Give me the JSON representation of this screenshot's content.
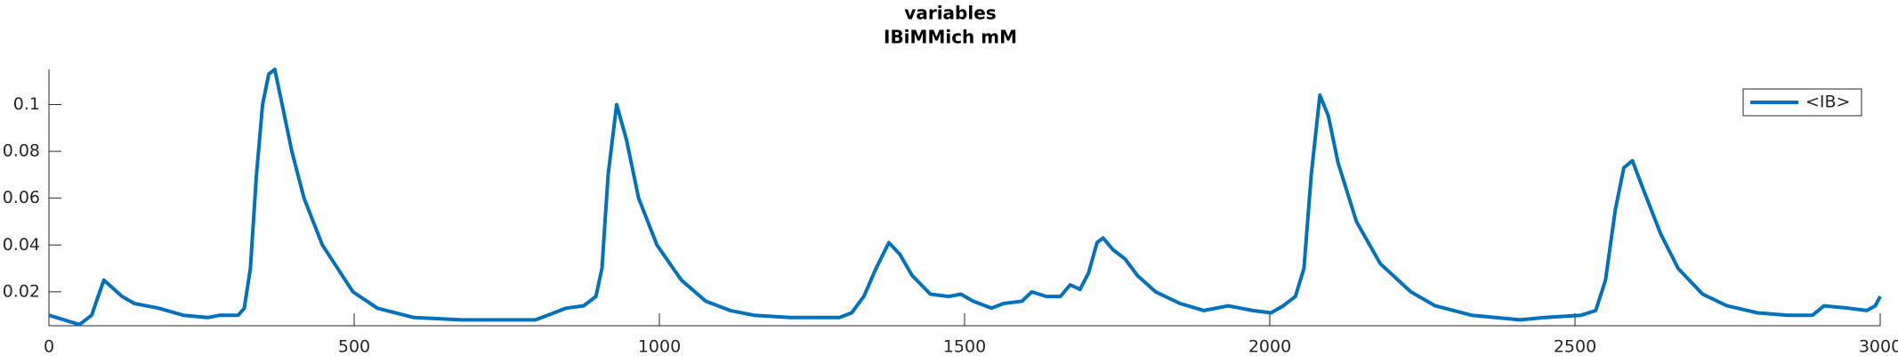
{
  "chart_data": {
    "type": "line",
    "title": "variables",
    "subtitle": "IBiMMich mM",
    "x": [
      0,
      50,
      70,
      90,
      120,
      140,
      180,
      220,
      260,
      280,
      310,
      320,
      330,
      340,
      350,
      360,
      370,
      382,
      398,
      418,
      448,
      498,
      538,
      598,
      677,
      717,
      797,
      817,
      847,
      876,
      896,
      906,
      916,
      930,
      946,
      966,
      996,
      1036,
      1076,
      1116,
      1155,
      1215,
      1295,
      1315,
      1335,
      1355,
      1376,
      1394,
      1414,
      1444,
      1474,
      1494,
      1514,
      1544,
      1564,
      1594,
      1610,
      1634,
      1657,
      1673,
      1689,
      1703,
      1717,
      1727,
      1743,
      1763,
      1783,
      1813,
      1853,
      1892,
      1932,
      1972,
      2002,
      2022,
      2042,
      2056,
      2068,
      2082,
      2096,
      2112,
      2142,
      2181,
      2231,
      2271,
      2331,
      2410,
      2450,
      2510,
      2534,
      2550,
      2566,
      2580,
      2594,
      2610,
      2640,
      2669,
      2709,
      2749,
      2799,
      2849,
      2889,
      2908,
      2948,
      2978,
      2992,
      3000
    ],
    "series": [
      {
        "name": "<IB>",
        "color": "#0072bd",
        "values": [
          0.01,
          0.006,
          0.01,
          0.025,
          0.018,
          0.015,
          0.013,
          0.01,
          0.009,
          0.01,
          0.01,
          0.013,
          0.03,
          0.07,
          0.1,
          0.113,
          0.115,
          0.1,
          0.08,
          0.06,
          0.04,
          0.02,
          0.013,
          0.009,
          0.008,
          0.008,
          0.008,
          0.01,
          0.013,
          0.014,
          0.018,
          0.03,
          0.07,
          0.1,
          0.085,
          0.06,
          0.04,
          0.025,
          0.016,
          0.012,
          0.01,
          0.009,
          0.009,
          0.011,
          0.018,
          0.03,
          0.041,
          0.036,
          0.027,
          0.019,
          0.018,
          0.019,
          0.016,
          0.013,
          0.015,
          0.016,
          0.02,
          0.018,
          0.018,
          0.023,
          0.021,
          0.028,
          0.041,
          0.043,
          0.038,
          0.034,
          0.027,
          0.02,
          0.015,
          0.012,
          0.014,
          0.012,
          0.011,
          0.014,
          0.018,
          0.03,
          0.07,
          0.104,
          0.095,
          0.075,
          0.05,
          0.032,
          0.02,
          0.014,
          0.01,
          0.008,
          0.009,
          0.01,
          0.012,
          0.025,
          0.055,
          0.073,
          0.076,
          0.065,
          0.045,
          0.03,
          0.019,
          0.014,
          0.011,
          0.01,
          0.01,
          0.014,
          0.013,
          0.012,
          0.014,
          0.018
        ]
      }
    ],
    "xlim": [
      0,
      3000
    ],
    "xticks": [
      0,
      500,
      1000,
      1500,
      2000,
      2500,
      3000
    ],
    "ylim": [
      0.0055,
      0.115
    ],
    "yticks": [
      0.02,
      0.04,
      0.06,
      0.08,
      0.1
    ],
    "legend": "northeast"
  }
}
